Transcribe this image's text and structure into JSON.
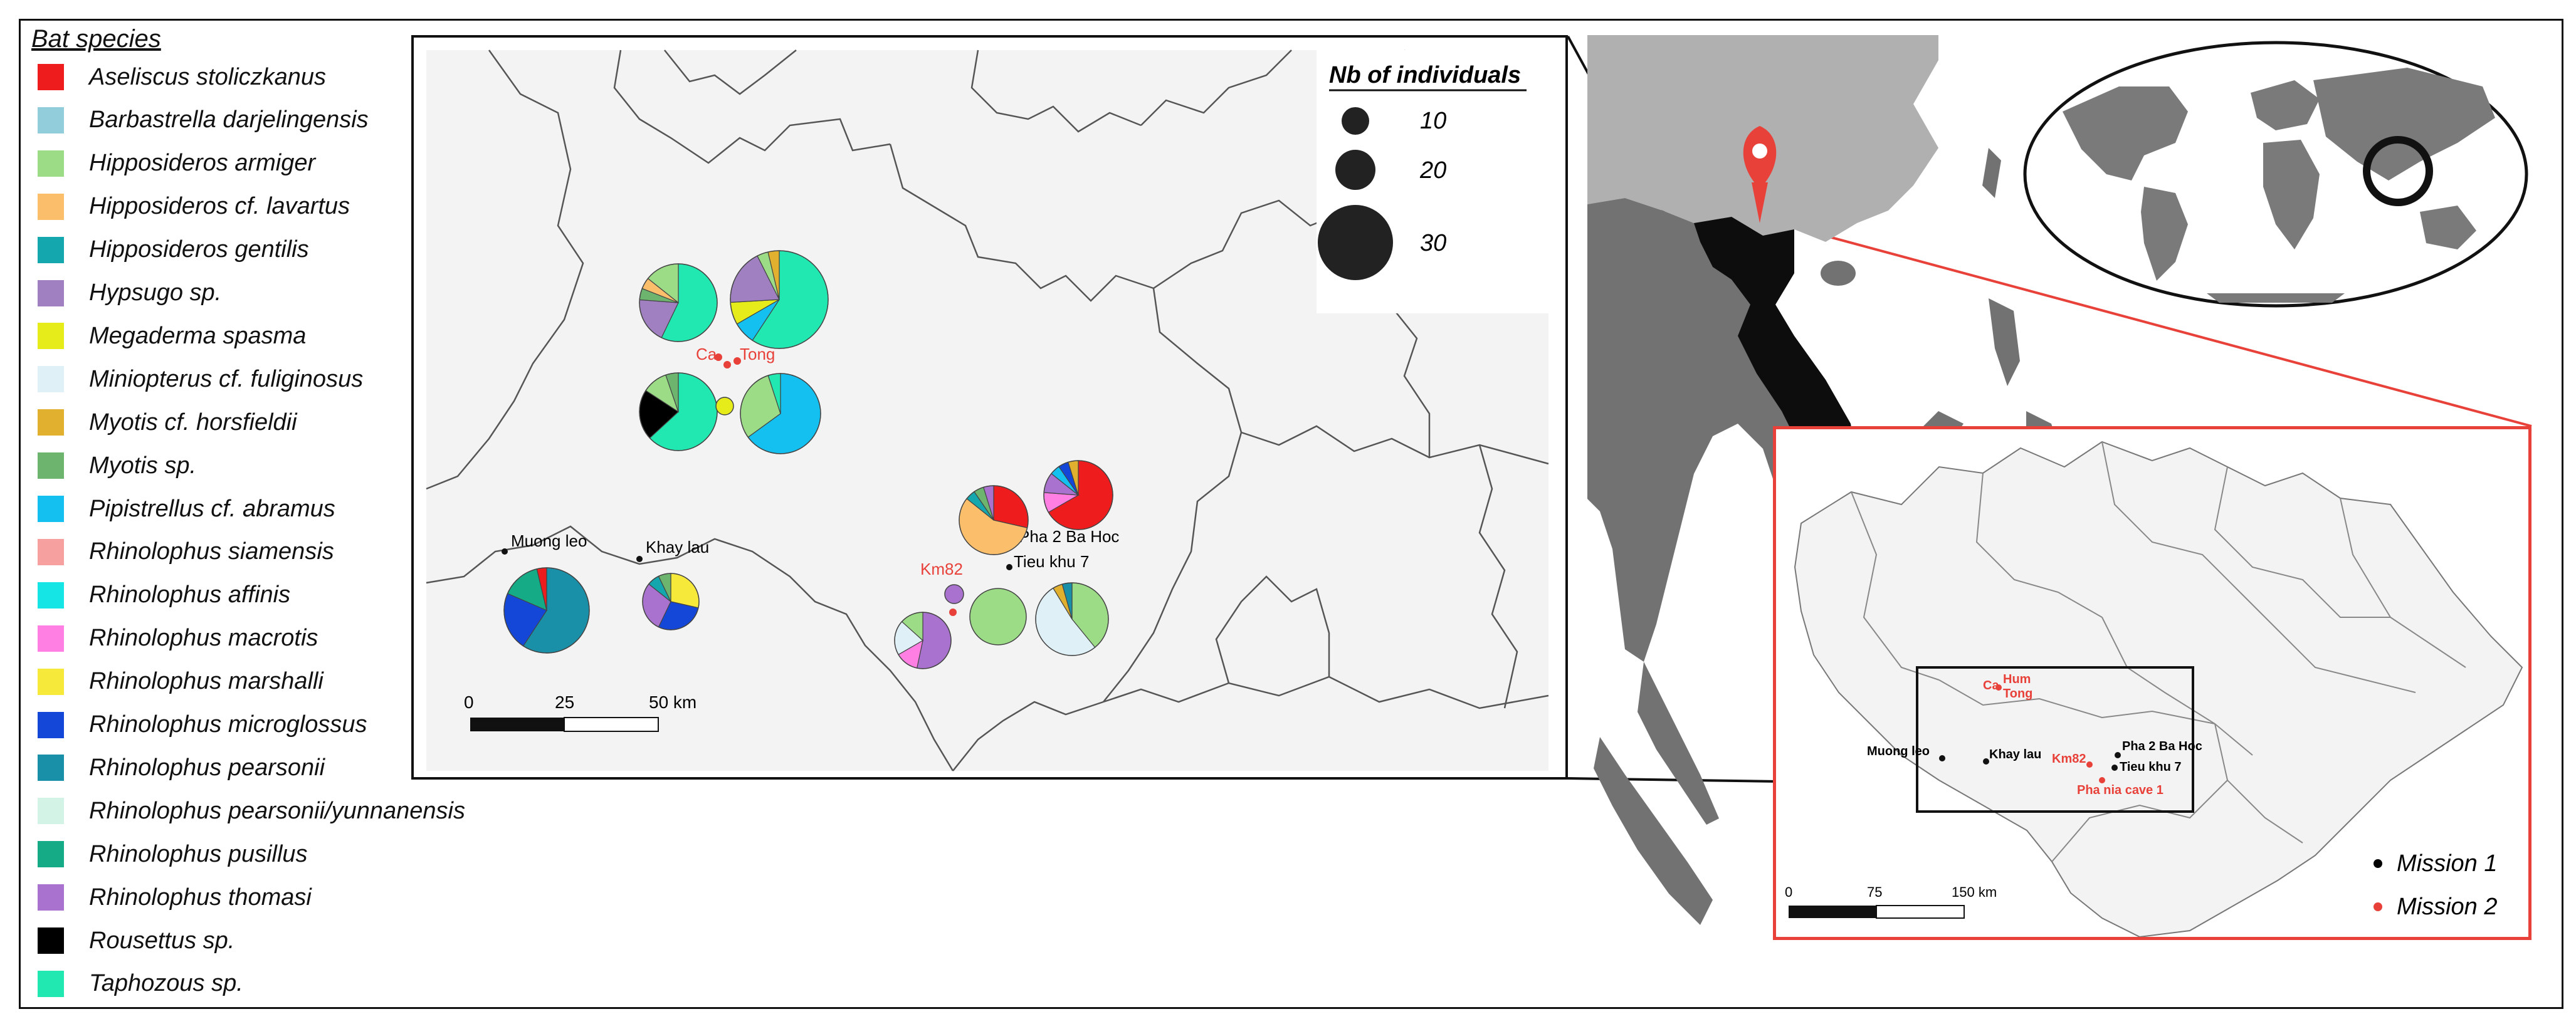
{
  "legend": {
    "title": "Bat species",
    "items": [
      {
        "label": "Aseliscus stoliczkanus",
        "color": "#ee1c1c"
      },
      {
        "label": "Barbastrella darjelingensis",
        "color": "#92cddc"
      },
      {
        "label": "Hipposideros armiger",
        "color": "#9ddc86"
      },
      {
        "label": "Hipposideros cf. lavartus",
        "color": "#fbbf6b"
      },
      {
        "label": "Hipposideros gentilis",
        "color": "#14a7ad"
      },
      {
        "label": "Hypsugo sp.",
        "color": "#a080c0"
      },
      {
        "label": "Megaderma spasma",
        "color": "#e6ec1a"
      },
      {
        "label": "Miniopterus cf. fuliginosus",
        "color": "#dff0f7"
      },
      {
        "label": "Myotis cf. horsfieldii",
        "color": "#e0b02e"
      },
      {
        "label": "Myotis sp.",
        "color": "#6db56f"
      },
      {
        "label": "Pipistrellus cf. abramus",
        "color": "#13c0f0"
      },
      {
        "label": "Rhinolophus siamensis",
        "color": "#f7a0a0"
      },
      {
        "label": "Rhinolophus affinis",
        "color": "#16e5e5"
      },
      {
        "label": "Rhinolophus macrotis",
        "color": "#ff7fe3"
      },
      {
        "label": "Rhinolophus marshalli",
        "color": "#f6e93a"
      },
      {
        "label": "Rhinolophus microglossus",
        "color": "#1447d8"
      },
      {
        "label": "Rhinolophus pearsonii",
        "color": "#1990a8"
      },
      {
        "label": "Rhinolophus pearsonii/yunnanensis",
        "color": "#d2f3e6"
      },
      {
        "label": "Rhinolophus pusillus",
        "color": "#15ab86"
      },
      {
        "label": "Rhinolophus thomasi",
        "color": "#a972cf"
      },
      {
        "label": "Rousettus sp.",
        "color": "#000000"
      },
      {
        "label": "Taphozous sp.",
        "color": "#21e8b0"
      }
    ]
  },
  "zoom_map": {
    "size_legend": {
      "title": "Nb of individuals",
      "values": [
        "10",
        "20",
        "30"
      ]
    },
    "scale_bar": {
      "ticks": [
        "0",
        "25",
        "50 km"
      ]
    },
    "sites": {
      "mission1": [
        "Muong leo",
        "Khay lau",
        "Pha 2 Ba Hoc",
        "Tieu khu 7"
      ],
      "mission2": [
        "Ca",
        "Tong",
        "Km82"
      ]
    },
    "pies": [
      {
        "site": "Ca (upper-left)",
        "slices": [
          [
            "Taphozous sp.",
            12
          ],
          [
            "Hypsugo sp.",
            4
          ],
          [
            "Myotis sp.",
            1
          ],
          [
            "Hipposideros cf. lavartus",
            1
          ],
          [
            "Hipposideros armiger",
            3
          ]
        ]
      },
      {
        "site": "Tong (upper-right)",
        "slices": [
          [
            "Taphozous sp.",
            16
          ],
          [
            "Pipistrellus cf. abramus",
            2
          ],
          [
            "Megaderma spasma",
            2
          ],
          [
            "Hypsugo sp.",
            5
          ],
          [
            "Hipposideros armiger",
            1
          ],
          [
            "Myotis cf. horsfieldii",
            1
          ]
        ]
      },
      {
        "site": "Ca (lower-left)",
        "slices": [
          [
            "Taphozous sp.",
            12
          ],
          [
            "Rousettus sp.",
            4
          ],
          [
            "Hipposideros armiger",
            2
          ],
          [
            "Myotis sp.",
            1
          ]
        ]
      },
      {
        "site": "Tong (lower-right)",
        "slices": [
          [
            "Pipistrellus cf. abramus",
            13
          ],
          [
            "Hipposideros armiger",
            6
          ],
          [
            "Taphozous sp.",
            1
          ]
        ]
      },
      {
        "site": "Tong (small)",
        "slices": [
          [
            "Megaderma spasma",
            1
          ]
        ]
      },
      {
        "site": "Pha 2 Ba Hoc (right)",
        "slices": [
          [
            "Aseliscus stoliczkanus",
            14
          ],
          [
            "Rhinolophus macrotis",
            2
          ],
          [
            "Rhinolophus thomasi",
            2
          ],
          [
            "Pipistrellus cf. abramus",
            1
          ],
          [
            "Rhinolophus microglossus",
            1
          ],
          [
            "Myotis cf. horsfieldii",
            1
          ]
        ]
      },
      {
        "site": "Pha 2 Ba Hoc (left)",
        "slices": [
          [
            "Aseliscus stoliczkanus",
            6
          ],
          [
            "Hipposideros cf. lavartus",
            12
          ],
          [
            "Hipposideros gentilis",
            1
          ],
          [
            "Myotis sp.",
            1
          ],
          [
            "Rhinolophus thomasi",
            1
          ]
        ]
      },
      {
        "site": "Muong leo",
        "slices": [
          [
            "Rhinolophus pearsonii",
            16
          ],
          [
            "Rhinolophus microglossus",
            6
          ],
          [
            "Rhinolophus pusillus",
            4
          ],
          [
            "Aseliscus stoliczkanus",
            1
          ]
        ]
      },
      {
        "site": "Khay lau",
        "slices": [
          [
            "Rhinolophus marshalli",
            4
          ],
          [
            "Rhinolophus microglossus",
            4
          ],
          [
            "Rhinolophus thomasi",
            4
          ],
          [
            "Hipposideros gentilis",
            1
          ],
          [
            "Myotis sp.",
            1
          ]
        ]
      },
      {
        "site": "Km82 (small)",
        "slices": [
          [
            "Rhinolophus thomasi",
            1
          ]
        ]
      },
      {
        "site": "Km82",
        "slices": [
          [
            "Rhinolophus thomasi",
            8
          ],
          [
            "Rhinolophus macrotis",
            2
          ],
          [
            "Miniopterus cf. fuliginosus",
            3
          ],
          [
            "Hipposideros armiger",
            2
          ]
        ]
      },
      {
        "site": "Km82 (right)",
        "slices": [
          [
            "Hipposideros armiger",
            12
          ]
        ]
      },
      {
        "site": "Tieu khu 7",
        "slices": [
          [
            "Hipposideros armiger",
            9
          ],
          [
            "Miniopterus cf. fuliginosus",
            12
          ],
          [
            "Myotis cf. horsfieldii",
            1
          ],
          [
            "Rhinolophus pearsonii",
            1
          ]
        ]
      }
    ]
  },
  "inset_map": {
    "scale_bar": {
      "ticks": [
        "0",
        "75",
        "150 km"
      ]
    },
    "sites_mission1": [
      "Muong leo",
      "Khay lau",
      "Pha 2 Ba Hoc",
      "Tieu khu 7"
    ],
    "sites_mission2": [
      "Ca",
      "Hum",
      "Tong",
      "Km82",
      "Pha nia cave 1"
    ],
    "legend": [
      {
        "label": "Mission 1",
        "color": "#000000"
      },
      {
        "label": "Mission 2",
        "color": "#e8413a"
      }
    ]
  },
  "colors": {
    "land_dark": "#6e6e6e",
    "land_light": "#b3b3b3",
    "zoom_bg": "#f3f3f3",
    "highlight": "#e8413a"
  }
}
